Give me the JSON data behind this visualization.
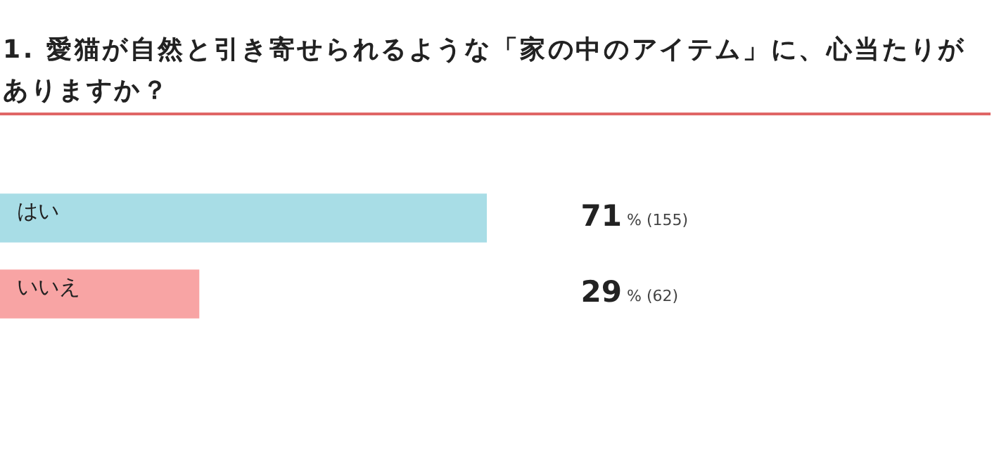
{
  "chart_data": {
    "type": "bar",
    "orientation": "horizontal",
    "title": "1. 愛猫が自然と引き寄せられるような「家の中のアイテム」に、心当たりがありますか？",
    "categories": [
      "はい",
      "いいえ"
    ],
    "values": [
      71,
      29
    ],
    "colors": [
      "#a8dde6",
      "#f8a4a4"
    ],
    "value_labels": [
      "71 % (155)",
      "29 % (62)"
    ]
  }
}
